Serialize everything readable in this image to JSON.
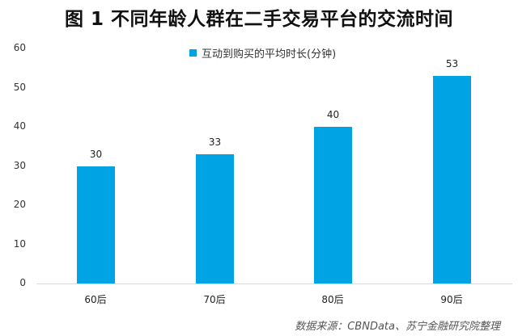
{
  "title": "图 1 不同年龄人群在二手交易平台的交流时间",
  "legend": {
    "label": "互动到购买的平均时长(分钟)",
    "color": "#00a3e4"
  },
  "y_ticks": [
    "0",
    "10",
    "20",
    "30",
    "40",
    "50",
    "60"
  ],
  "source": "数据来源：CBNData、苏宁金融研究院整理",
  "chart_data": {
    "type": "bar",
    "title": "图 1 不同年龄人群在二手交易平台的交流时间",
    "categories": [
      "60后",
      "70后",
      "80后",
      "90后"
    ],
    "series": [
      {
        "name": "互动到购买的平均时长(分钟)",
        "values": [
          30,
          33,
          40,
          53
        ],
        "color": "#00a3e4"
      }
    ],
    "xlabel": "",
    "ylabel": "",
    "ylim": [
      0,
      60
    ],
    "yticks": [
      0,
      10,
      20,
      30,
      40,
      50,
      60
    ],
    "grid": false,
    "legend_position": "top",
    "data_labels": true,
    "source": "数据来源：CBNData、苏宁金融研究院整理"
  }
}
